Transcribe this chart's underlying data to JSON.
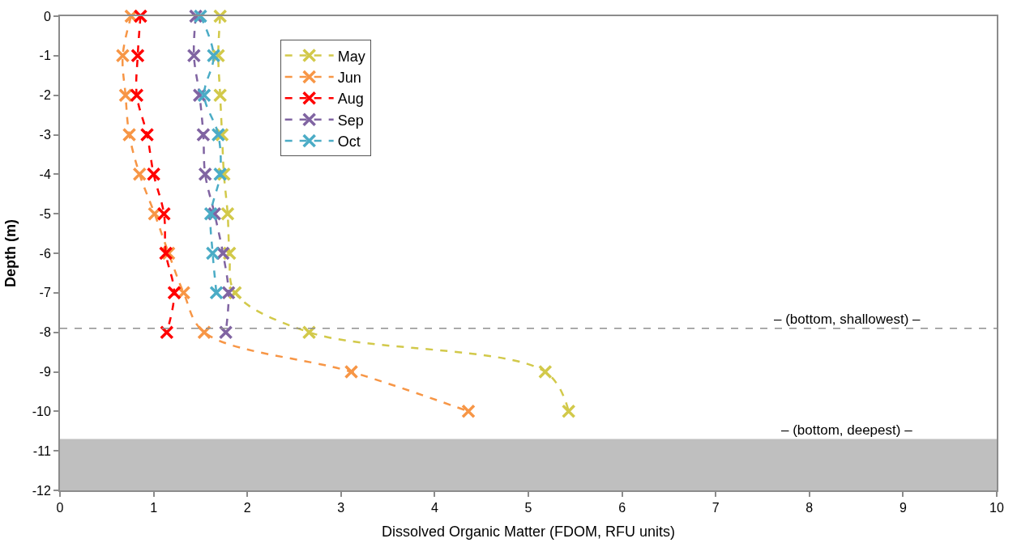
{
  "chart_data": {
    "type": "line",
    "xlabel": "Dissolved Organic Matter (FDOM, RFU units)",
    "ylabel": "Depth (m)",
    "xlim": [
      0,
      10
    ],
    "xticks": [
      0,
      1,
      2,
      3,
      4,
      5,
      6,
      7,
      8,
      9,
      10
    ],
    "ylim": [
      -12,
      0
    ],
    "yticks": [
      0,
      -1,
      -2,
      -3,
      -4,
      -5,
      -6,
      -7,
      -8,
      -9,
      -10,
      -11,
      -12
    ],
    "orientation": "horizontal",
    "grid": false,
    "legend": "top",
    "marker": "cross",
    "line_style": "dashed",
    "x": [
      0,
      -1,
      -2,
      -3,
      -4,
      -5,
      -6,
      -7,
      -8,
      -9,
      -10
    ],
    "series": [
      {
        "name": "May",
        "color": "#d2c94a",
        "values": [
          1.71,
          1.69,
          1.71,
          1.73,
          1.75,
          1.79,
          1.81,
          1.87,
          2.66,
          5.18,
          5.43
        ]
      },
      {
        "name": "Jun",
        "color": "#f79646",
        "values": [
          0.76,
          0.67,
          0.7,
          0.74,
          0.85,
          1.01,
          1.16,
          1.32,
          1.54,
          3.11,
          4.36
        ]
      },
      {
        "name": "Aug",
        "color": "#ff0000",
        "values": [
          0.86,
          0.83,
          0.82,
          0.93,
          1.0,
          1.11,
          1.13,
          1.22,
          1.14,
          null,
          null
        ]
      },
      {
        "name": "Sep",
        "color": "#8064a2",
        "values": [
          1.45,
          1.43,
          1.49,
          1.53,
          1.55,
          1.65,
          1.74,
          1.8,
          1.77,
          null,
          null
        ]
      },
      {
        "name": "Oct",
        "color": "#4bacc6",
        "values": [
          1.5,
          1.64,
          1.54,
          1.69,
          1.71,
          1.61,
          1.63,
          1.67,
          null,
          null,
          null
        ]
      }
    ],
    "ref_lines": [
      {
        "axis": "y",
        "value": -7.9,
        "label": "– (bottom, shallowest) –",
        "color": "#909090",
        "line_style": "dashed"
      }
    ],
    "bands": [
      {
        "axis": "y",
        "from": -10.7,
        "to": -12,
        "label": "– (bottom, deepest) –",
        "color": "#bfbfbf"
      }
    ]
  }
}
